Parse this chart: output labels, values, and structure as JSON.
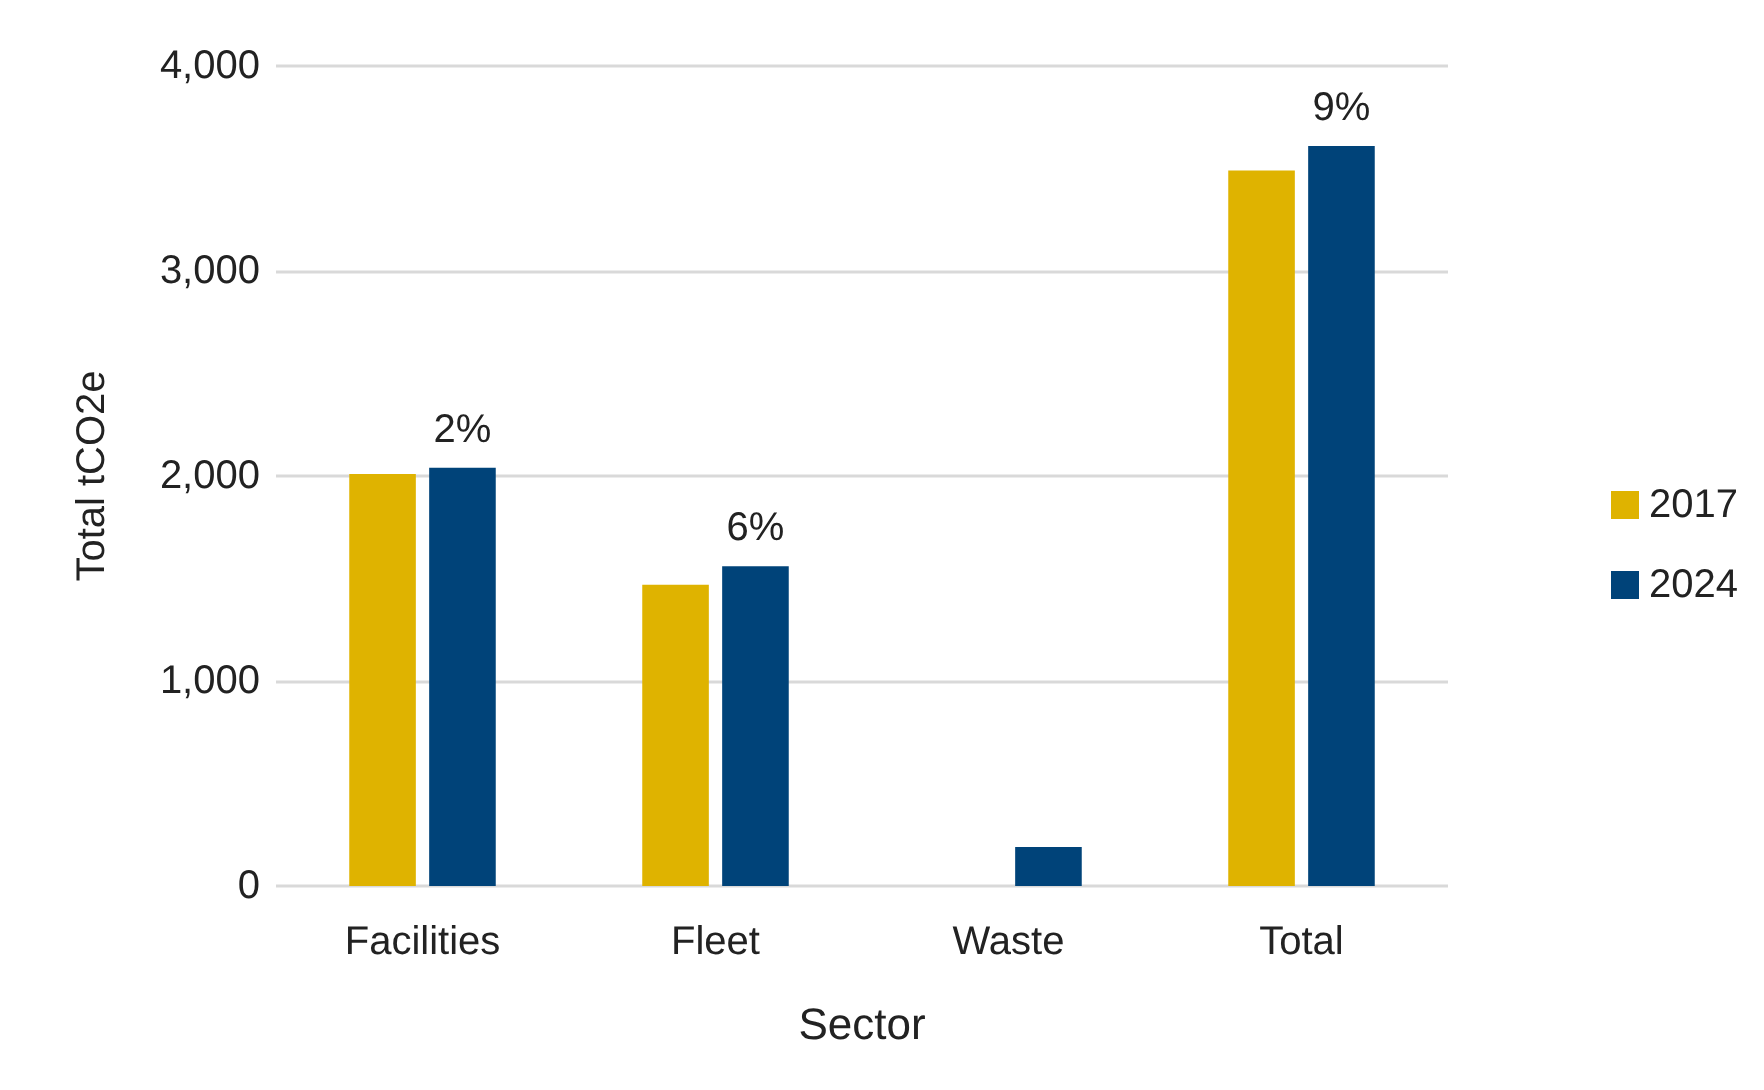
{
  "chart_data": {
    "type": "bar",
    "xlabel": "Sector",
    "ylabel": "Total tCO2e",
    "categories": [
      "Facilities",
      "Fleet",
      "Waste",
      "Total"
    ],
    "series": [
      {
        "name": "2017",
        "color": "#dfb300",
        "values": [
          2010,
          1470,
          0,
          3490
        ]
      },
      {
        "name": "2024",
        "color": "#004379",
        "values": [
          2040,
          1560,
          190,
          3610
        ]
      }
    ],
    "ylim": [
      0,
      4000
    ],
    "yticks": [
      {
        "value": 0,
        "label": "0"
      },
      {
        "value": 1000,
        "label": "1,000"
      },
      {
        "value": 2000,
        "label": "2,000"
      },
      {
        "value": 3000,
        "label": "3,000"
      },
      {
        "value": 4000,
        "label": "4,000"
      }
    ],
    "grid": "y",
    "legend": "right",
    "annotations": [
      {
        "text": "2%",
        "x": "Facilities",
        "y": 2040
      },
      {
        "text": "6%",
        "x": "Fleet",
        "y": 1560
      },
      {
        "text": "9%",
        "x": "Total",
        "y": 3610
      }
    ]
  }
}
